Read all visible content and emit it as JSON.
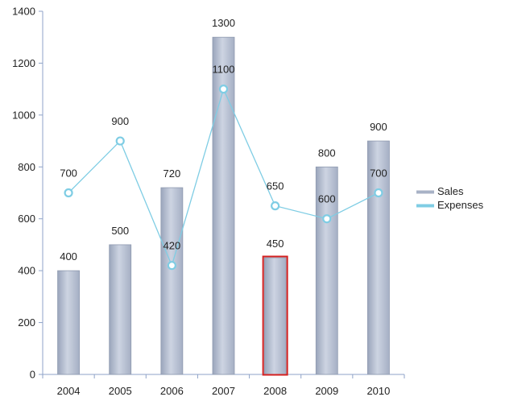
{
  "chart_data": {
    "type": "bar",
    "categories": [
      "2004",
      "2005",
      "2006",
      "2007",
      "2008",
      "2009",
      "2010"
    ],
    "series": [
      {
        "name": "Sales",
        "type": "bar",
        "values": [
          400,
          500,
          720,
          1300,
          450,
          800,
          900
        ]
      },
      {
        "name": "Expenses",
        "type": "line",
        "values": [
          700,
          900,
          420,
          1100,
          650,
          600,
          700
        ]
      }
    ],
    "ylim": [
      0,
      1400
    ],
    "yticks": [
      "0",
      "200",
      "400",
      "600",
      "800",
      "1000",
      "1200",
      "1400"
    ],
    "grid": false,
    "legend_position": "right",
    "highlighted_category": "2008",
    "colors": {
      "bar_fill": "#b4bdd0",
      "bar_edge": "#8f9ab0",
      "line": "#7fcde4",
      "marker_fill": "#ffffff",
      "axis": "#8fa3c8",
      "highlight": "#d42020",
      "text": "#222222"
    }
  }
}
